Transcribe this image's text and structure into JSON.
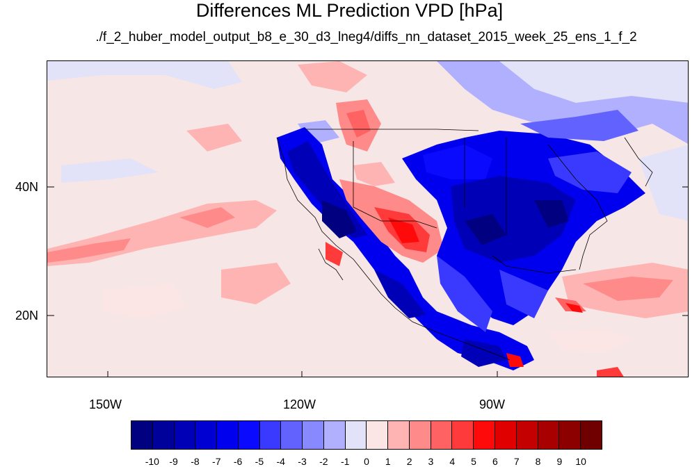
{
  "title": "Differences ML Prediction VPD [hPa]",
  "subtitle": "./f_2_huber_model_output_b8_e_30_d3_lneg4/diffs_nn_dataset_2015_week_25_ens_1_f_2",
  "map": {
    "region": "North America and eastern Pacific",
    "lon_range": [
      -160,
      -62
    ],
    "lat_range": [
      10.5,
      59.5
    ],
    "lat_ticks": [
      "40N",
      "20N"
    ],
    "lon_ticks": [
      "150W",
      "120W",
      "90W"
    ]
  },
  "colorbar": {
    "labels": [
      "-10",
      "-9",
      "-8",
      "-7",
      "-6",
      "-5",
      "-4",
      "-3",
      "-2",
      "-1",
      "0",
      "1",
      "2",
      "3",
      "4",
      "5",
      "6",
      "7",
      "8",
      "9",
      "10"
    ],
    "colors": [
      "#000080",
      "#00009b",
      "#0000b7",
      "#0000d2",
      "#0000ee",
      "#0a0aff",
      "#3a3aff",
      "#6262ff",
      "#8989ff",
      "#b0b0ff",
      "#e2e2f8",
      "#fbe5e5",
      "#ffb4b4",
      "#ff8a8a",
      "#ff6262",
      "#ff3a3a",
      "#ff0a0a",
      "#e10000",
      "#c40000",
      "#a80000",
      "#8c0000",
      "#700000"
    ]
  },
  "colors": {
    "ocean_background": "#f7e6e6",
    "strong_negative": "#0000d2",
    "strong_positive": "#ff0a0a"
  }
}
